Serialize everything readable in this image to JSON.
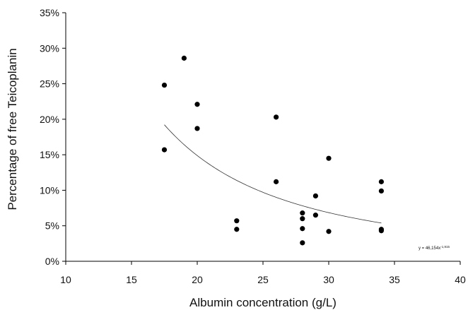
{
  "chart_data": {
    "type": "scatter",
    "xlabel": "Albumin concentration (g/L)",
    "ylabel": "Percentage of free Teicoplanin",
    "xlim": [
      10,
      40
    ],
    "ylim": [
      0,
      0.35
    ],
    "x_ticks": [
      10,
      15,
      20,
      25,
      30,
      35,
      40
    ],
    "y_ticks": [
      0,
      0.05,
      0.1,
      0.15,
      0.2,
      0.25,
      0.3,
      0.35
    ],
    "x_tick_labels": [
      "10",
      "15",
      "20",
      "25",
      "30",
      "35",
      "40"
    ],
    "y_tick_labels": [
      "0%",
      "5%",
      "10%",
      "15%",
      "20%",
      "25%",
      "30%",
      "35%"
    ],
    "grid": false,
    "series": [
      {
        "points": [
          {
            "x": 17.5,
            "y": 0.248
          },
          {
            "x": 17.5,
            "y": 0.157
          },
          {
            "x": 19.0,
            "y": 0.286
          },
          {
            "x": 20.0,
            "y": 0.221
          },
          {
            "x": 20.0,
            "y": 0.187
          },
          {
            "x": 23.0,
            "y": 0.057
          },
          {
            "x": 23.0,
            "y": 0.045
          },
          {
            "x": 26.0,
            "y": 0.203
          },
          {
            "x": 26.0,
            "y": 0.112
          },
          {
            "x": 28.0,
            "y": 0.068
          },
          {
            "x": 28.0,
            "y": 0.06
          },
          {
            "x": 28.0,
            "y": 0.046
          },
          {
            "x": 28.0,
            "y": 0.026
          },
          {
            "x": 29.0,
            "y": 0.092
          },
          {
            "x": 29.0,
            "y": 0.065
          },
          {
            "x": 30.0,
            "y": 0.145
          },
          {
            "x": 30.0,
            "y": 0.042
          },
          {
            "x": 34.0,
            "y": 0.112
          },
          {
            "x": 34.0,
            "y": 0.099
          },
          {
            "x": 34.0,
            "y": 0.045
          },
          {
            "x": 34.0,
            "y": 0.043
          }
        ]
      }
    ],
    "trendline": {
      "type": "power",
      "coefficient": 46.154,
      "exponent": -1.915,
      "x_range": [
        17.5,
        34
      ]
    },
    "annotation": {
      "text": "y = 46,154x",
      "superscript": "-1,915"
    },
    "colors": {
      "points": "#000000",
      "trendline": "#333333",
      "axis": "#000000"
    }
  }
}
